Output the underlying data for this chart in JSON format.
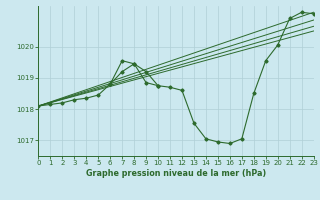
{
  "background_color": "#cce8ef",
  "grid_color": "#b0cfd6",
  "line_color": "#2d6a2d",
  "title": "Graphe pression niveau de la mer (hPa)",
  "xlim": [
    0,
    23
  ],
  "ylim": [
    1016.5,
    1021.3
  ],
  "yticks": [
    1017,
    1018,
    1019,
    1020
  ],
  "xticks": [
    0,
    1,
    2,
    3,
    4,
    5,
    6,
    7,
    8,
    9,
    10,
    11,
    12,
    13,
    14,
    15,
    16,
    17,
    18,
    19,
    20,
    21,
    22,
    23
  ],
  "main_x": [
    0,
    1,
    2,
    3,
    4,
    5,
    6,
    7,
    8,
    9,
    10,
    11,
    12,
    13,
    14,
    15,
    16,
    17,
    18,
    19,
    20,
    21,
    22,
    23
  ],
  "main_y": [
    1018.1,
    1018.15,
    1018.2,
    1018.3,
    1018.35,
    1018.45,
    1018.8,
    1019.55,
    1019.45,
    1018.85,
    1018.75,
    1018.7,
    1018.6,
    1017.55,
    1017.05,
    1016.95,
    1016.9,
    1017.05,
    1018.5,
    1019.55,
    1020.05,
    1020.9,
    1021.1,
    1021.05
  ],
  "peak_x": [
    6,
    7,
    8,
    9,
    10
  ],
  "peak_y": [
    1018.8,
    1019.2,
    1019.45,
    1019.2,
    1018.75
  ],
  "straight_lines": [
    [
      [
        0,
        1018.1
      ],
      [
        23,
        1021.1
      ]
    ],
    [
      [
        0,
        1018.1
      ],
      [
        23,
        1020.85
      ]
    ],
    [
      [
        0,
        1018.1
      ],
      [
        23,
        1020.65
      ]
    ],
    [
      [
        0,
        1018.1
      ],
      [
        23,
        1020.5
      ]
    ]
  ]
}
